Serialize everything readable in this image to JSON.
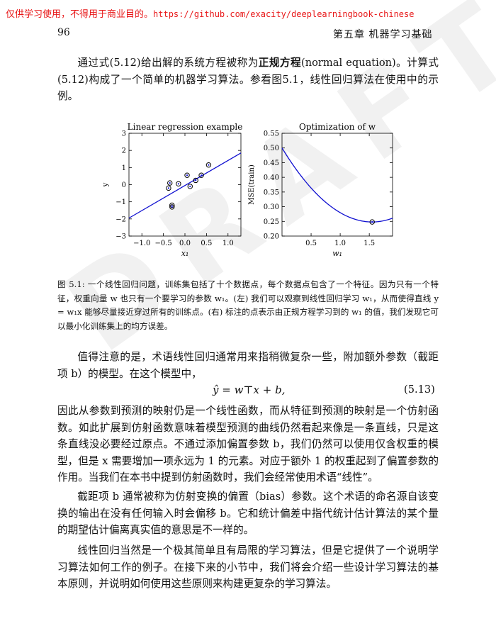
{
  "watermark": {
    "notice": "仅供学习使用，不得用于商业目的。",
    "url": "https://github.com/exacity/deeplearningbook-chinese"
  },
  "header": {
    "page_number": "96",
    "chapter": "第五章  机器学习基础"
  },
  "intro_paragraph": {
    "text_a": "通过式(5.12)给出解的系统方程被称为",
    "term": "正规方程",
    "text_b": "(normal equation)。计算式(5.12)构成了一个简单的机器学习算法。参看图5.1，线性回归算法在使用中的示例。"
  },
  "chart_data": [
    {
      "type": "scatter",
      "title": "Linear regression example",
      "xlabel": "x₁",
      "ylabel": "y",
      "xlim": [
        -1.3,
        1.3
      ],
      "ylim": [
        -3,
        3
      ],
      "xticks": [
        "−1.0",
        "−0.5",
        "0.0",
        "0.5",
        "1.0"
      ],
      "xtick_values": [
        -1.0,
        -0.5,
        0.0,
        0.5,
        1.0
      ],
      "yticks": [
        "−3",
        "−2",
        "−1",
        "0",
        "1",
        "2",
        "3"
      ],
      "ytick_values": [
        -3,
        -2,
        -1,
        0,
        1,
        2,
        3
      ],
      "points": [
        {
          "x": -0.35,
          "y": 0.1
        },
        {
          "x": -0.38,
          "y": -0.2
        },
        {
          "x": -0.3,
          "y": -1.2
        },
        {
          "x": -0.3,
          "y": -1.3
        },
        {
          "x": -0.15,
          "y": 0.05
        },
        {
          "x": 0.05,
          "y": 0.55
        },
        {
          "x": 0.12,
          "y": -0.1
        },
        {
          "x": 0.25,
          "y": 0.25
        },
        {
          "x": 0.38,
          "y": 0.55
        },
        {
          "x": 0.55,
          "y": 1.15
        }
      ],
      "fit_line": {
        "x": [
          -1.3,
          1.3
        ],
        "y": [
          -1.95,
          1.85
        ]
      }
    },
    {
      "type": "line",
      "title": "Optimization of w",
      "xlabel": "w₁",
      "ylabel": "MSE(train)",
      "xlim": [
        0.0,
        1.9
      ],
      "ylim": [
        0.2,
        0.55
      ],
      "xticks": [
        "0.5",
        "1.0",
        "1.5"
      ],
      "xtick_values": [
        0.5,
        1.0,
        1.5
      ],
      "yticks": [
        "0.20",
        "0.25",
        "0.30",
        "0.35",
        "0.40",
        "0.45",
        "0.50",
        "0.55"
      ],
      "ytick_values": [
        0.2,
        0.25,
        0.3,
        0.35,
        0.4,
        0.45,
        0.5,
        0.55
      ],
      "curve": {
        "vertex_w": 1.55,
        "vertex_mse": 0.248,
        "at_zero_mse": 0.5
      },
      "marked_point": {
        "x": 1.55,
        "y": 0.248
      }
    }
  ],
  "caption": {
    "text": "图 5.1: 一个线性回归问题，训练集包括了十个数据点，每个数据点包含了一个特征。因为只有一个特征，权重向量 w 也只有一个要学习的参数 w₁。(左) 我们可以观察到线性回归学习 w₁，从而使得直线 y = w₁x 能够尽量接近穿过所有的训练点。(右) 标注的点表示由正规方程学习到的 w₁ 的值，我们发现它可以最小化训练集上的均方误差。"
  },
  "paragraph_bias_intro": {
    "text": "值得注意的是，术语线性回归通常用来指稍微复杂一些，附加额外参数（截距项 b）的模型。在这个模型中，"
  },
  "equation": {
    "formula": "ŷ = w⊤x + b,",
    "number": "(5.13)"
  },
  "paragraph_affine": {
    "text": "因此从参数到预测的映射仍是一个线性函数，而从特征到预测的映射是一个仿射函数。如此扩展到仿射函数意味着模型预测的曲线仍然看起来像是一条直线，只是这条直线没必要经过原点。不通过添加偏置参数 b，我们仍然可以使用仅含权重的模型，但是 x 需要增加一项永远为 1 的元素。对应于额外 1 的权重起到了偏置参数的作用。当我们在本书中提到仿射函数时，我们会经常使用术语“线性”。"
  },
  "paragraph_bias_term": {
    "text": "截距项 b 通常被称为仿射变换的偏置（bias）参数。这个术语的命名源自该变换的输出在没有任何输入时会偏移 b。它和统计偏差中指代统计估计算法的某个量的期望估计偏离真实值的意思是不一样的。"
  },
  "paragraph_conclusion": {
    "text": "线性回归当然是一个极其简单且有局限的学习算法，但是它提供了一个说明学习算法如何工作的例子。在接下来的小节中，我们将会介绍一些设计学习算法的基本原则，并说明如何使用这些原则来构建更复杂的学习算法。"
  }
}
